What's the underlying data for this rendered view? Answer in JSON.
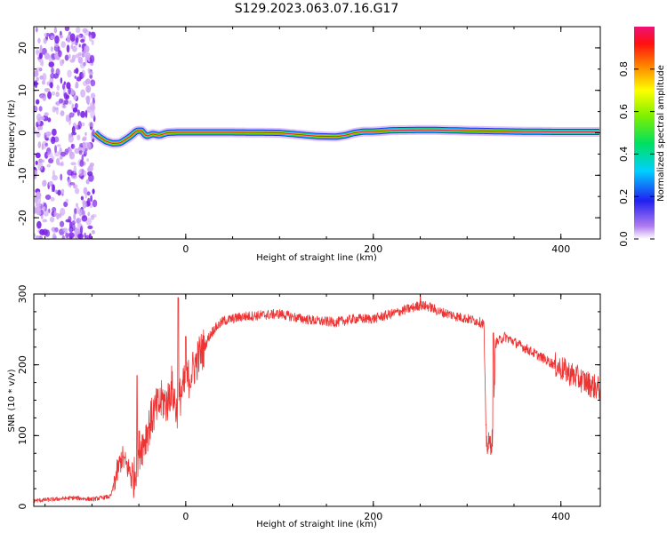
{
  "title": "S129.2023.063.07.16.G17",
  "colors": {
    "snr_line": "#ee3333",
    "ridge_core": "#e8223a",
    "ridge_mid": "#22dd22",
    "ridge_outer": "#2233ee",
    "noise": "#7a1ee8",
    "halo": "#cfa8f5"
  },
  "chart_data": [
    {
      "type": "heatmap",
      "title": "S129.2023.063.07.16.G17",
      "xlabel": "Height of straight line (km)",
      "ylabel": "Frequency (Hz)",
      "xlim": [
        -162,
        442
      ],
      "ylim": [
        -25,
        25
      ],
      "xticks": [
        0,
        200,
        400
      ],
      "yticks": [
        -20,
        -10,
        0,
        10,
        20
      ],
      "grid": false,
      "colorbar": {
        "label": "Normalized spectral amplitude",
        "range": [
          0,
          1
        ],
        "ticks": [
          "0.0",
          "0.2",
          "0.4",
          "0.6",
          "0.8"
        ],
        "colormap": "rainbow (white/violet at 0, red/magenta at 1)"
      },
      "noise_region_x": [
        -162,
        -97
      ],
      "ridge": {
        "x": [
          -97,
          -92,
          -85,
          -78,
          -70,
          -60,
          -52,
          -47,
          -42,
          -35,
          -28,
          -20,
          -10,
          0,
          50,
          100,
          120,
          140,
          160,
          170,
          180,
          190,
          200,
          220,
          260,
          300,
          350,
          400,
          442
        ],
        "freq": [
          0.0,
          -1.0,
          -2.0,
          -2.5,
          -2.4,
          -1.0,
          0.5,
          0.5,
          -0.8,
          -0.3,
          -0.6,
          0.0,
          0.1,
          0.1,
          0.1,
          0.0,
          -0.4,
          -0.8,
          -0.9,
          -0.6,
          0.0,
          0.3,
          0.3,
          0.6,
          0.7,
          0.5,
          0.3,
          0.2,
          0.2
        ]
      }
    },
    {
      "type": "line",
      "xlabel": "Height of straight line (km)",
      "ylabel": "SNR (10 * v/v)",
      "xlim": [
        -162,
        442
      ],
      "ylim": [
        0,
        300
      ],
      "xticks": [
        0,
        200,
        400
      ],
      "yticks": [
        0,
        100,
        200,
        300
      ],
      "grid": false,
      "series": [
        {
          "x": [
            -162,
            -140,
            -120,
            -100,
            -90,
            -80,
            -75,
            -68,
            -60,
            -55,
            -50,
            -45,
            -40,
            -35,
            -30,
            -25,
            -20,
            -15,
            -10,
            -5,
            0,
            5,
            10,
            15,
            20,
            25,
            30,
            40,
            50,
            60,
            80,
            100,
            120,
            140,
            160,
            180,
            200,
            220,
            240,
            250,
            260,
            270,
            280,
            290,
            300,
            310,
            318,
            320,
            322,
            325,
            328,
            330,
            335,
            340,
            360,
            380,
            400,
            420,
            442
          ],
          "y": [
            8,
            10,
            12,
            10,
            12,
            14,
            40,
            70,
            50,
            40,
            80,
            90,
            110,
            130,
            140,
            150,
            145,
            170,
            135,
            160,
            175,
            185,
            200,
            215,
            225,
            240,
            250,
            262,
            265,
            268,
            270,
            272,
            266,
            262,
            260,
            265,
            265,
            272,
            280,
            284,
            282,
            275,
            272,
            268,
            265,
            262,
            258,
            100,
            85,
            90,
            95,
            230,
            235,
            240,
            225,
            210,
            195,
            180,
            165
          ]
        }
      ],
      "spikes": [
        {
          "x": -52,
          "y": 185
        },
        {
          "x": -8,
          "y": 295
        },
        {
          "x": 0,
          "y": 240
        },
        {
          "x": 250,
          "y": 298
        },
        {
          "x": 328,
          "y": 245
        }
      ]
    }
  ]
}
